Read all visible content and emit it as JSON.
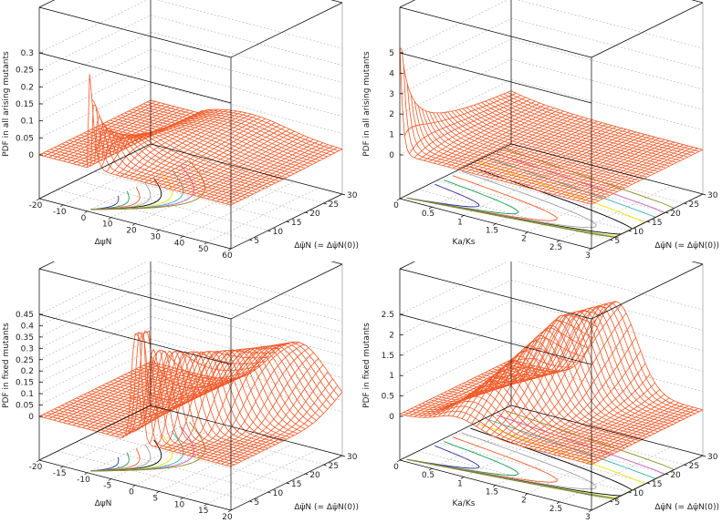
{
  "chart_data": [
    {
      "type": "surface",
      "zlabel": "PDF in all arising mutants",
      "xlabel": "ΔψN",
      "ylabel": "Δψ̄N (= Δψ̄N(0))",
      "xlim": [
        -20,
        60
      ],
      "ylim": [
        0,
        30
      ],
      "zlim": [
        0,
        0.3
      ],
      "xticks": [
        "-20",
        "-10",
        "0",
        "10",
        "20",
        "30",
        "40",
        "50",
        "60"
      ],
      "yticks": [
        "5",
        "10",
        "15",
        "20",
        "25",
        "30"
      ],
      "zticks": [
        "0",
        "0.05",
        "0.1",
        "0.15",
        "0.2",
        "0.25",
        "0.3"
      ],
      "surface_color": "#f05a28",
      "contours_on_base": true
    },
    {
      "type": "surface",
      "zlabel": "PDF in all arising mutants",
      "xlabel": "Ka/Ks",
      "ylabel": "Δψ̄N (= Δψ̄N(0))",
      "xlim": [
        0,
        3
      ],
      "ylim": [
        0,
        30
      ],
      "zlim": [
        0,
        5
      ],
      "xticks": [
        "0",
        "0.5",
        "1",
        "1.5",
        "2",
        "2.5",
        "3"
      ],
      "yticks": [
        "5",
        "10",
        "15",
        "20",
        "25",
        "30"
      ],
      "zticks": [
        "0",
        "1",
        "2",
        "3",
        "4",
        "5"
      ],
      "surface_color": "#f05a28",
      "contours_on_base": true
    },
    {
      "type": "surface",
      "zlabel": "PDF in fixed mutants",
      "xlabel": "ΔψN",
      "ylabel": "Δψ̄N (= Δψ̄N(0))",
      "xlim": [
        -20,
        20
      ],
      "ylim": [
        0,
        30
      ],
      "zlim": [
        0,
        0.45
      ],
      "xticks": [
        "-20",
        "-15",
        "-10",
        "-5",
        "0",
        "5",
        "10",
        "15",
        "20"
      ],
      "yticks": [
        "5",
        "10",
        "15",
        "20",
        "25",
        "30"
      ],
      "zticks": [
        "0",
        "0.05",
        "0.1",
        "0.15",
        "0.2",
        "0.25",
        "0.3",
        "0.35",
        "0.4",
        "0.45"
      ],
      "surface_color": "#f05a28",
      "contours_on_base": true
    },
    {
      "type": "surface",
      "zlabel": "PDF in fixed mutants",
      "xlabel": "Ka/Ks",
      "ylabel": "Δψ̄N (= Δψ̄N(0))",
      "xlim": [
        0,
        3
      ],
      "ylim": [
        0,
        30
      ],
      "zlim": [
        0,
        2.5
      ],
      "xticks": [
        "0",
        "0.5",
        "1",
        "1.5",
        "2",
        "2.5",
        "3"
      ],
      "yticks": [
        "5",
        "10",
        "15",
        "20",
        "25",
        "30"
      ],
      "zticks": [
        "0",
        "0.5",
        "1",
        "1.5",
        "2",
        "2.5"
      ],
      "surface_color": "#f05a28",
      "contours_on_base": true
    }
  ]
}
